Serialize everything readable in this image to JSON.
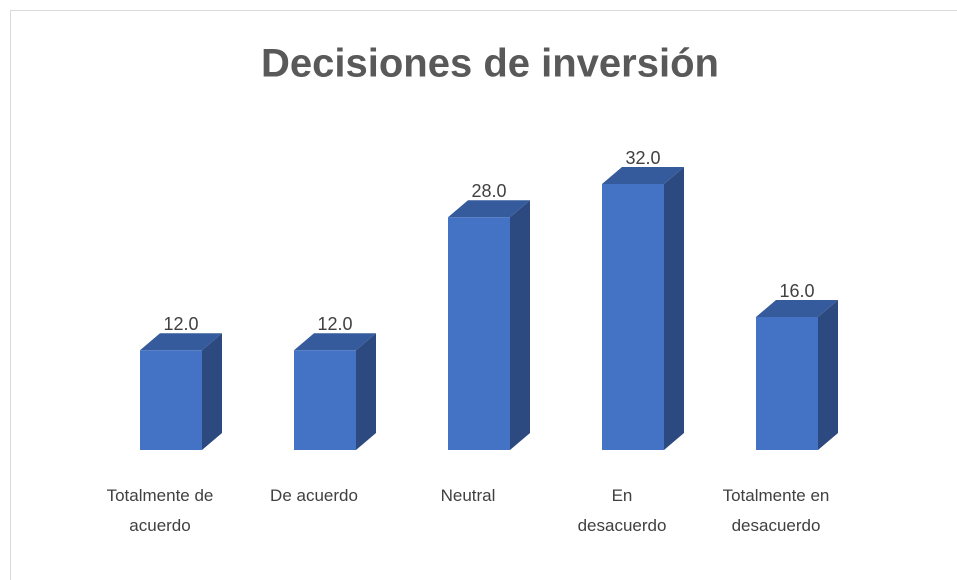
{
  "chart_data": {
    "type": "bar3d",
    "title": "Decisiones de inversión",
    "categories": [
      "Totalmente de acuerdo",
      "De acuerdo",
      "Neutral",
      "En desacuerdo",
      "Totalmente en desacuerdo"
    ],
    "values": [
      12,
      12,
      28,
      32,
      16
    ],
    "value_labels": [
      "12.0",
      "12.0",
      "28.0",
      "32.0",
      "16.0"
    ],
    "color": "#4472c4"
  }
}
